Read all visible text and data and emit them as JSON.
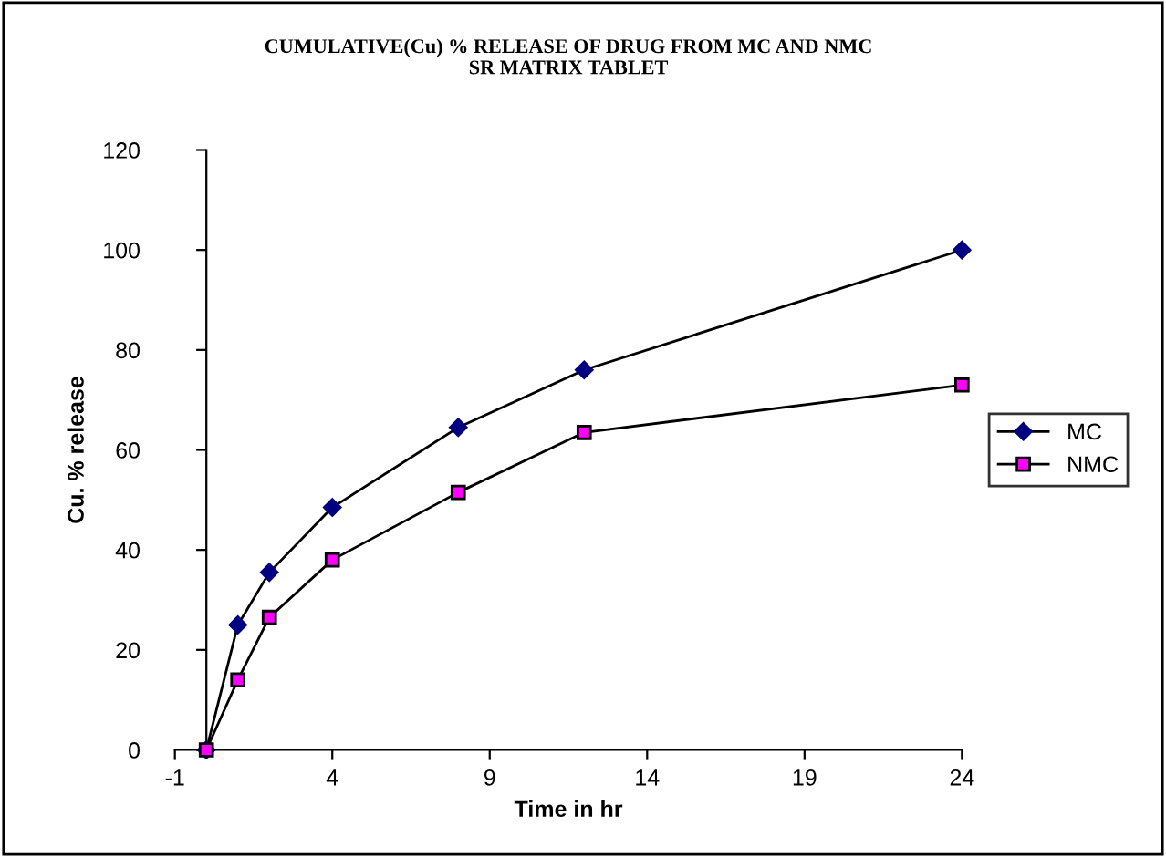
{
  "chart_data": {
    "type": "line",
    "title": "CUMULATIVE(Cu) % RELEASE OF DRUG FROM MC AND NMC\nSR MATRIX TABLET",
    "xlabel": "Time in hr",
    "ylabel": "Cu. % release",
    "x": [
      0,
      1,
      2,
      4,
      8,
      12,
      24
    ],
    "series": [
      {
        "name": "MC",
        "color": "#000080",
        "marker": "diamond",
        "values": [
          0,
          25,
          35.5,
          48.5,
          64.5,
          76,
          100
        ]
      },
      {
        "name": "NMC",
        "color": "#ff00ff",
        "marker": "square",
        "values": [
          0,
          14,
          26.5,
          38,
          51.5,
          63.5,
          73
        ]
      }
    ],
    "xlim": [
      -1,
      24
    ],
    "xticks": [
      -1,
      4,
      9,
      14,
      19,
      24
    ],
    "ylim": [
      0,
      120
    ],
    "yticks": [
      0,
      20,
      40,
      60,
      80,
      100,
      120
    ],
    "grid": false,
    "legend": "right",
    "line_style": "solid"
  }
}
